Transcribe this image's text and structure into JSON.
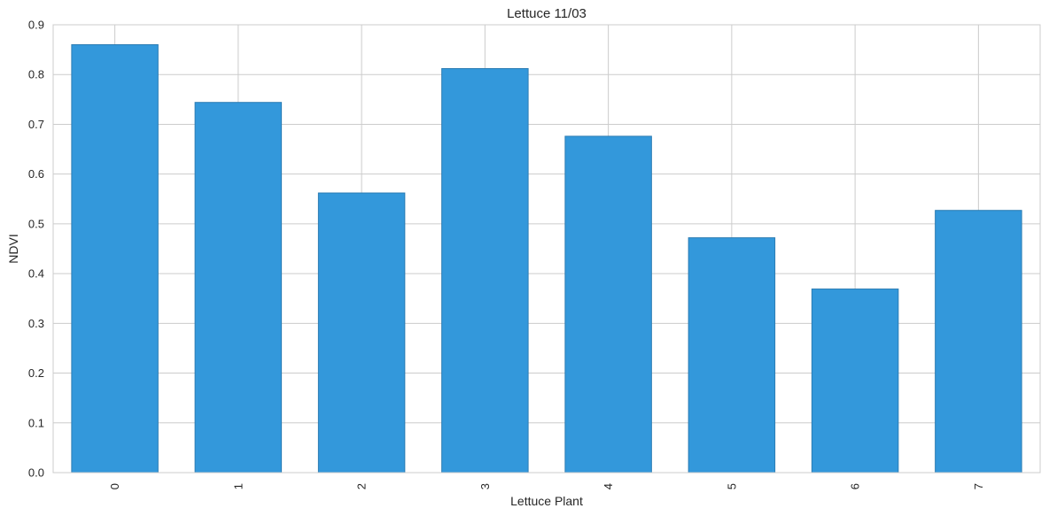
{
  "chart_data": {
    "type": "bar",
    "title": "Lettuce 11/03",
    "xlabel": "Lettuce Plant",
    "ylabel": "NDVI",
    "categories": [
      "0",
      "1",
      "2",
      "3",
      "4",
      "5",
      "6",
      "7"
    ],
    "values": [
      0.86,
      0.744,
      0.562,
      0.812,
      0.676,
      0.472,
      0.369,
      0.527
    ],
    "ylim": [
      0,
      0.9
    ],
    "yticks": [
      "0.0",
      "0.1",
      "0.2",
      "0.3",
      "0.4",
      "0.5",
      "0.6",
      "0.7",
      "0.8",
      "0.9"
    ],
    "grid": true,
    "legend": "none",
    "colors": {
      "bar": "#3398db",
      "bar_edge": "#2b7cb3",
      "grid": "#cccccc",
      "spine": "#cccccc",
      "text": "#262626"
    }
  }
}
